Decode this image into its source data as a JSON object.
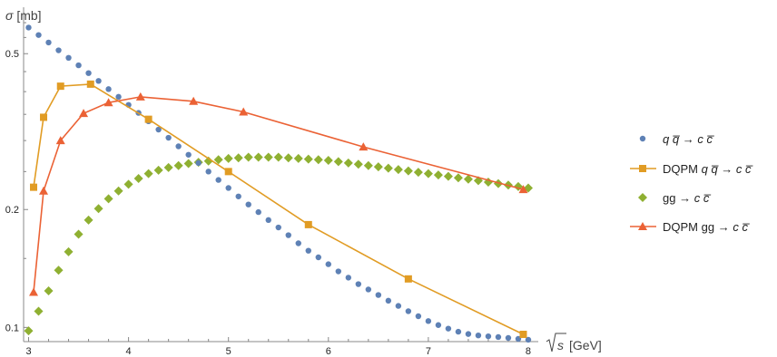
{
  "chart_data": {
    "type": "scatter",
    "x_axis": {
      "label_var": "s",
      "label_unit": "[GeV]",
      "range": [
        2.95,
        8.1
      ],
      "ticks": [
        3,
        4,
        5,
        6,
        7,
        8
      ],
      "tick_labels": [
        "3",
        "4",
        "5",
        "6",
        "7",
        "8"
      ]
    },
    "y_axis": {
      "label_var": "σ",
      "label_unit": "[mb]",
      "scale": "log",
      "range": [
        0.092,
        0.65
      ],
      "ticks": [
        0.1,
        0.2,
        0.5
      ],
      "tick_labels": [
        "0.1",
        "0.2",
        "0.5"
      ]
    },
    "grid": false,
    "legend_position": "right",
    "series": [
      {
        "name": "q q̄ → c c̄",
        "legend_parts": [
          "q",
          "q",
          "→",
          "c",
          "c"
        ],
        "style": "points",
        "marker": "circle",
        "color": "#5E81B5",
        "x": [
          3.0,
          3.1,
          3.2,
          3.3,
          3.4,
          3.5,
          3.6,
          3.7,
          3.8,
          3.9,
          4.0,
          4.1,
          4.2,
          4.3,
          4.4,
          4.5,
          4.6,
          4.7,
          4.8,
          4.9,
          5.0,
          5.1,
          5.2,
          5.3,
          5.4,
          5.5,
          5.6,
          5.7,
          5.8,
          5.9,
          6.0,
          6.1,
          6.2,
          6.3,
          6.4,
          6.5,
          6.6,
          6.7,
          6.8,
          6.9,
          7.0,
          7.1,
          7.2,
          7.3,
          7.4,
          7.5,
          7.6,
          7.7,
          7.8,
          7.9,
          8.0
        ],
        "y": [
          0.583,
          0.558,
          0.534,
          0.51,
          0.488,
          0.467,
          0.446,
          0.426,
          0.406,
          0.388,
          0.37,
          0.353,
          0.336,
          0.32,
          0.305,
          0.29,
          0.276,
          0.263,
          0.25,
          0.238,
          0.227,
          0.216,
          0.206,
          0.197,
          0.188,
          0.18,
          0.172,
          0.164,
          0.157,
          0.151,
          0.145,
          0.139,
          0.134,
          0.129,
          0.125,
          0.121,
          0.117,
          0.1135,
          0.11,
          0.1068,
          0.1038,
          0.1014,
          0.0993,
          0.0975,
          0.0962,
          0.0954,
          0.0949,
          0.0945,
          0.094,
          0.0935,
          0.093
        ]
      },
      {
        "name": "DQPM q q̄ → c c̄",
        "legend_parts": [
          "DQPM",
          "q",
          "q",
          "→",
          "c",
          "c"
        ],
        "style": "line+markers",
        "marker": "square",
        "color": "#E19C24",
        "x": [
          3.05,
          3.15,
          3.32,
          3.62,
          4.2,
          5.0,
          5.8,
          6.8,
          7.95
        ],
        "y": [
          0.228,
          0.344,
          0.413,
          0.418,
          0.34,
          0.25,
          0.183,
          0.133,
          0.096
        ]
      },
      {
        "name": "gg → c c̄",
        "legend_parts": [
          "gg",
          "→",
          "c",
          "c"
        ],
        "style": "points",
        "marker": "diamond",
        "color": "#8FB032",
        "x": [
          3.0,
          3.1,
          3.2,
          3.3,
          3.4,
          3.5,
          3.6,
          3.7,
          3.8,
          3.9,
          4.0,
          4.1,
          4.2,
          4.3,
          4.4,
          4.5,
          4.6,
          4.7,
          4.8,
          4.9,
          5.0,
          5.1,
          5.2,
          5.3,
          5.4,
          5.5,
          5.6,
          5.7,
          5.8,
          5.9,
          6.0,
          6.1,
          6.2,
          6.3,
          6.4,
          6.5,
          6.6,
          6.7,
          6.8,
          6.9,
          7.0,
          7.1,
          7.2,
          7.3,
          7.4,
          7.5,
          7.6,
          7.7,
          7.8,
          7.9,
          8.0
        ],
        "y": [
          0.098,
          0.11,
          0.124,
          0.14,
          0.156,
          0.173,
          0.188,
          0.201,
          0.213,
          0.223,
          0.232,
          0.24,
          0.247,
          0.252,
          0.256,
          0.259,
          0.262,
          0.264,
          0.266,
          0.268,
          0.27,
          0.271,
          0.272,
          0.272,
          0.272,
          0.272,
          0.271,
          0.27,
          0.269,
          0.268,
          0.267,
          0.265,
          0.263,
          0.261,
          0.259,
          0.257,
          0.255,
          0.253,
          0.251,
          0.249,
          0.247,
          0.245,
          0.243,
          0.241,
          0.239,
          0.237,
          0.235,
          0.233,
          0.231,
          0.229,
          0.227
        ]
      },
      {
        "name": "DQPM gg → c c̄",
        "legend_parts": [
          "DQPM gg",
          "→",
          "c",
          "c"
        ],
        "style": "line+markers",
        "marker": "triangle",
        "color": "#EB6235",
        "x": [
          3.05,
          3.15,
          3.32,
          3.55,
          3.8,
          4.12,
          4.65,
          5.15,
          6.35,
          7.95
        ],
        "y": [
          0.123,
          0.223,
          0.3,
          0.352,
          0.375,
          0.388,
          0.378,
          0.355,
          0.289,
          0.225
        ]
      }
    ]
  }
}
